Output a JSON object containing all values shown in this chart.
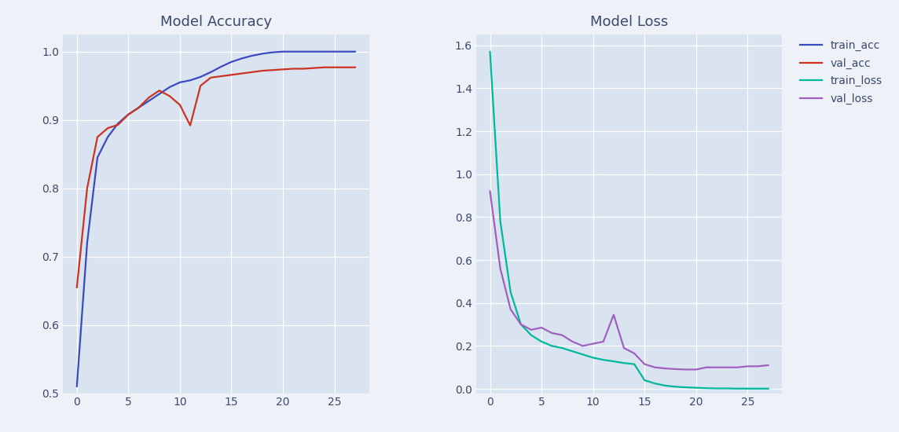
{
  "title_acc": "Model Accuracy",
  "title_loss": "Model Loss",
  "bg_color": "#dae4f0",
  "fig_bg_color": "#eef2f8",
  "train_acc": [
    0.51,
    0.72,
    0.845,
    0.875,
    0.895,
    0.908,
    0.918,
    0.928,
    0.938,
    0.948,
    0.955,
    0.958,
    0.963,
    0.97,
    0.978,
    0.985,
    0.99,
    0.994,
    0.997,
    0.999,
    1.0,
    1.0,
    1.0,
    1.0,
    1.0,
    1.0,
    1.0,
    1.0
  ],
  "val_acc": [
    0.655,
    0.8,
    0.875,
    0.888,
    0.893,
    0.908,
    0.918,
    0.933,
    0.943,
    0.935,
    0.922,
    0.892,
    0.95,
    0.962,
    0.964,
    0.966,
    0.968,
    0.97,
    0.972,
    0.973,
    0.974,
    0.975,
    0.975,
    0.976,
    0.977,
    0.977,
    0.977,
    0.977
  ],
  "train_loss": [
    1.57,
    0.78,
    0.45,
    0.3,
    0.25,
    0.22,
    0.2,
    0.19,
    0.175,
    0.16,
    0.145,
    0.135,
    0.128,
    0.12,
    0.115,
    0.04,
    0.025,
    0.015,
    0.01,
    0.007,
    0.005,
    0.003,
    0.002,
    0.002,
    0.001,
    0.001,
    0.001,
    0.001
  ],
  "val_loss": [
    0.92,
    0.56,
    0.37,
    0.3,
    0.275,
    0.285,
    0.26,
    0.25,
    0.22,
    0.2,
    0.21,
    0.22,
    0.345,
    0.19,
    0.165,
    0.115,
    0.1,
    0.095,
    0.092,
    0.09,
    0.09,
    0.1,
    0.1,
    0.1,
    0.1,
    0.105,
    0.105,
    0.11
  ],
  "color_train_acc": "#3a4ac0",
  "color_val_acc": "#cc3322",
  "color_train_loss": "#00b89c",
  "color_val_loss": "#a060c0",
  "legend_labels": [
    "train_acc",
    "val_acc",
    "train_loss",
    "val_loss"
  ],
  "acc_ylim": [
    0.5,
    1.025
  ],
  "loss_ylim": [
    -0.02,
    1.65
  ],
  "acc_yticks": [
    0.5,
    0.6,
    0.7,
    0.8,
    0.9,
    1.0
  ],
  "loss_yticks": [
    0.0,
    0.2,
    0.4,
    0.6,
    0.8,
    1.0,
    1.2,
    1.4,
    1.6
  ],
  "xticks": [
    0,
    5,
    10,
    15,
    20,
    25
  ],
  "title_fontsize": 13,
  "legend_fontsize": 10,
  "tick_fontsize": 10,
  "line_width": 1.6,
  "tick_color": "#3a4a6a",
  "title_color": "#3a4a6a"
}
